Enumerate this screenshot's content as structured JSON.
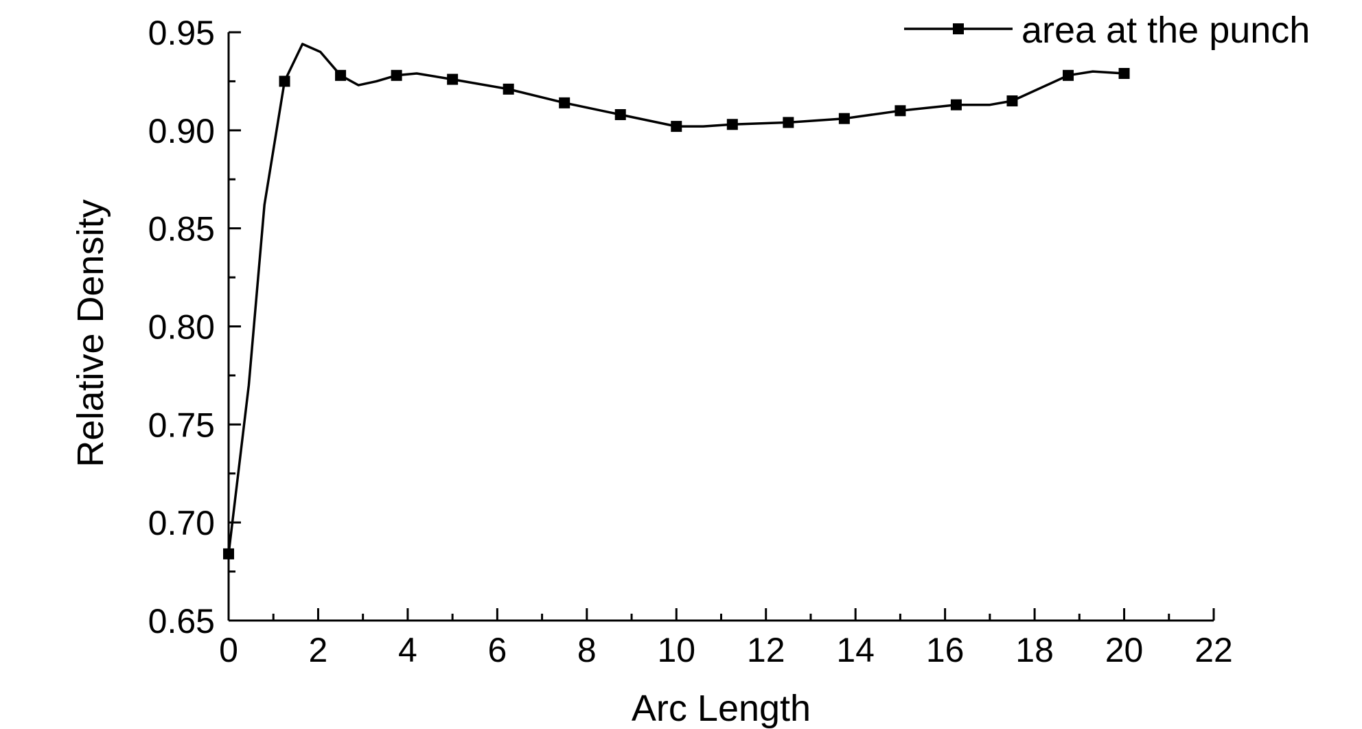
{
  "chart_data": {
    "type": "line",
    "title": "",
    "xlabel": "Arc Length",
    "ylabel": "Relative Density",
    "xlim": [
      0,
      22
    ],
    "ylim": [
      0.65,
      0.95
    ],
    "x_ticks": [
      "0",
      "2",
      "4",
      "6",
      "8",
      "10",
      "12",
      "14",
      "16",
      "18",
      "20",
      "22"
    ],
    "y_ticks": [
      "0.65",
      "0.70",
      "0.75",
      "0.80",
      "0.85",
      "0.90",
      "0.95"
    ],
    "grid": false,
    "legend": {
      "position": "top-right",
      "entries": [
        "area at the punch"
      ]
    },
    "series": [
      {
        "name": "area at the punch",
        "color": "#000000",
        "marker": "square",
        "markers": [
          {
            "x": 0.0,
            "y": 0.684
          },
          {
            "x": 1.25,
            "y": 0.925
          },
          {
            "x": 2.5,
            "y": 0.928
          },
          {
            "x": 3.75,
            "y": 0.928
          },
          {
            "x": 5.0,
            "y": 0.926
          },
          {
            "x": 6.25,
            "y": 0.921
          },
          {
            "x": 7.5,
            "y": 0.914
          },
          {
            "x": 8.75,
            "y": 0.908
          },
          {
            "x": 10.0,
            "y": 0.902
          },
          {
            "x": 11.25,
            "y": 0.903
          },
          {
            "x": 12.5,
            "y": 0.904
          },
          {
            "x": 13.75,
            "y": 0.906
          },
          {
            "x": 15.0,
            "y": 0.91
          },
          {
            "x": 16.25,
            "y": 0.913
          },
          {
            "x": 17.5,
            "y": 0.915
          },
          {
            "x": 18.75,
            "y": 0.928
          },
          {
            "x": 20.0,
            "y": 0.929
          }
        ],
        "line": [
          {
            "x": 0.0,
            "y": 0.684
          },
          {
            "x": 0.45,
            "y": 0.77
          },
          {
            "x": 0.8,
            "y": 0.862
          },
          {
            "x": 1.25,
            "y": 0.925
          },
          {
            "x": 1.65,
            "y": 0.944
          },
          {
            "x": 2.05,
            "y": 0.94
          },
          {
            "x": 2.5,
            "y": 0.928
          },
          {
            "x": 2.9,
            "y": 0.923
          },
          {
            "x": 3.3,
            "y": 0.925
          },
          {
            "x": 3.75,
            "y": 0.928
          },
          {
            "x": 4.2,
            "y": 0.929
          },
          {
            "x": 5.0,
            "y": 0.926
          },
          {
            "x": 6.25,
            "y": 0.921
          },
          {
            "x": 7.5,
            "y": 0.914
          },
          {
            "x": 8.75,
            "y": 0.908
          },
          {
            "x": 10.0,
            "y": 0.902
          },
          {
            "x": 10.6,
            "y": 0.902
          },
          {
            "x": 11.25,
            "y": 0.903
          },
          {
            "x": 12.5,
            "y": 0.904
          },
          {
            "x": 13.75,
            "y": 0.906
          },
          {
            "x": 15.0,
            "y": 0.91
          },
          {
            "x": 16.25,
            "y": 0.913
          },
          {
            "x": 17.0,
            "y": 0.913
          },
          {
            "x": 17.5,
            "y": 0.915
          },
          {
            "x": 18.75,
            "y": 0.928
          },
          {
            "x": 19.3,
            "y": 0.93
          },
          {
            "x": 20.0,
            "y": 0.929
          }
        ]
      }
    ]
  }
}
